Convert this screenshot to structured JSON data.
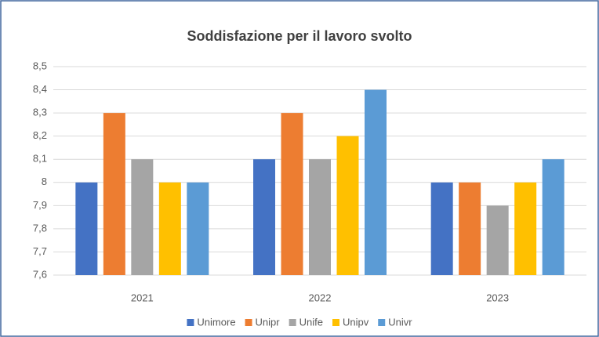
{
  "chart_data": {
    "type": "bar",
    "title": "Soddisfazione per il lavoro svolto",
    "categories": [
      "2021",
      "2022",
      "2023"
    ],
    "series": [
      {
        "name": "Unimore",
        "color": "#4472c4",
        "values": [
          8,
          8.1,
          8
        ]
      },
      {
        "name": "Unipr",
        "color": "#ed7d31",
        "values": [
          8.3,
          8.3,
          8
        ]
      },
      {
        "name": "Unife",
        "color": "#a5a5a5",
        "values": [
          8.1,
          8.1,
          7.9
        ]
      },
      {
        "name": "Unipv",
        "color": "#ffc000",
        "values": [
          8,
          8.2,
          8
        ]
      },
      {
        "name": "Univr",
        "color": "#5b9bd5",
        "values": [
          8,
          8.4,
          8.1
        ]
      }
    ],
    "ylim": [
      7.6,
      8.5
    ],
    "yticks": [
      {
        "value": 7.6,
        "label": "7,6"
      },
      {
        "value": 7.7,
        "label": "7,7"
      },
      {
        "value": 7.8,
        "label": "7,8"
      },
      {
        "value": 7.9,
        "label": "7,9"
      },
      8,
      {
        "value": 8.1,
        "label": "8,1"
      },
      {
        "value": 8.2,
        "label": "8,2"
      },
      {
        "value": 8.3,
        "label": "8,3"
      },
      {
        "value": 8.4,
        "label": "8,4"
      },
      {
        "value": 8.5,
        "label": "8,5"
      }
    ],
    "grid": true,
    "legend": "bottom"
  }
}
